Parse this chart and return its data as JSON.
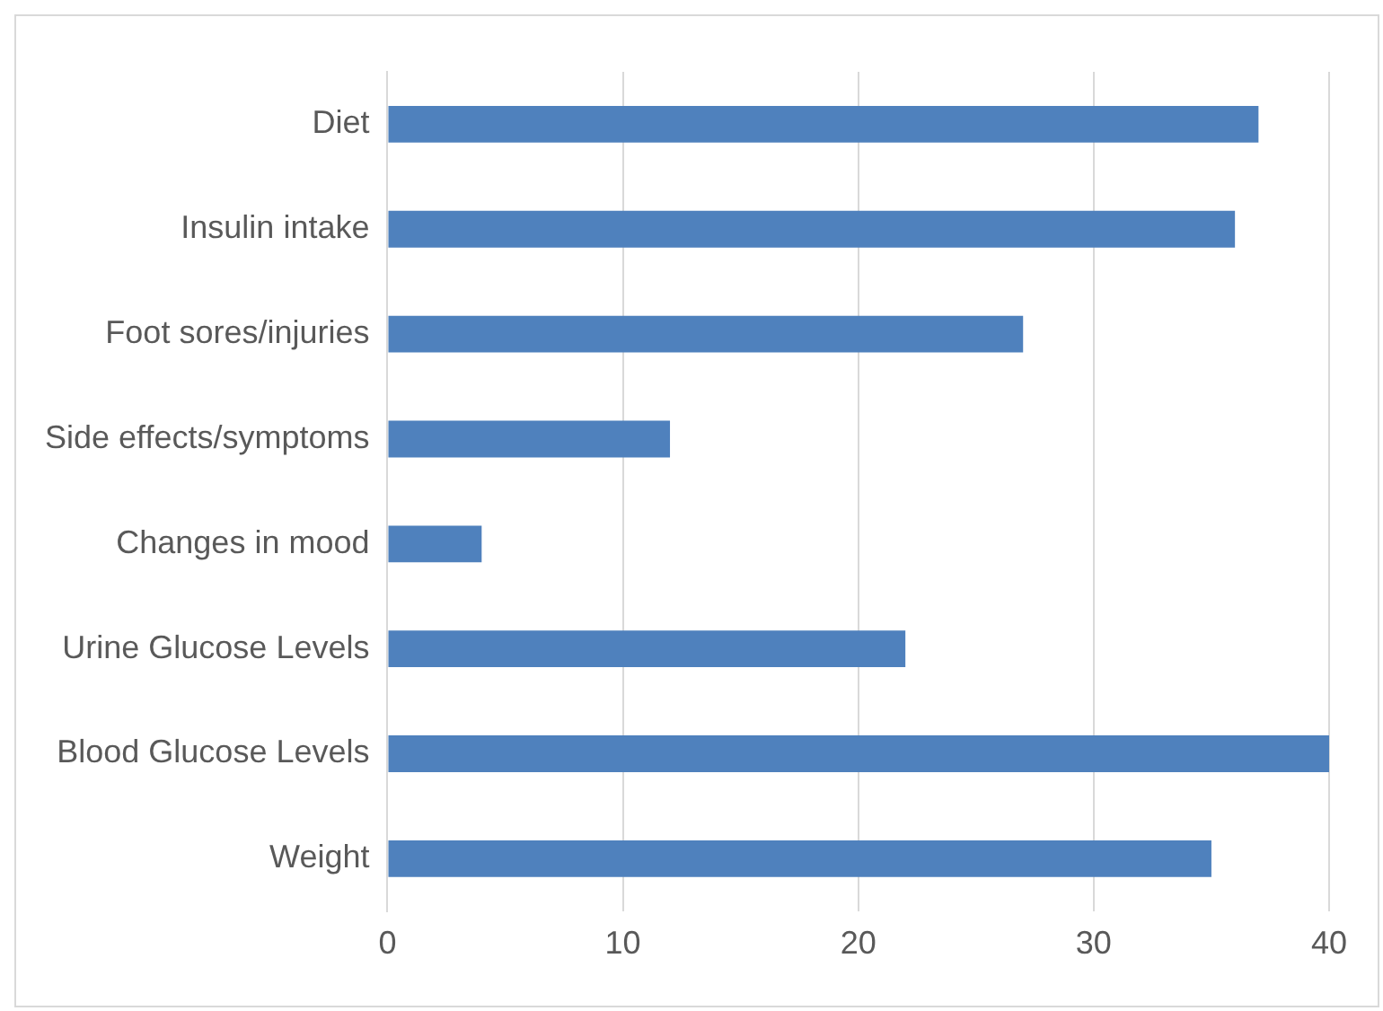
{
  "chart_data": {
    "type": "bar",
    "orientation": "horizontal",
    "categories": [
      "Diet",
      "Insulin intake",
      "Foot sores/injuries",
      "Side effects/symptoms",
      "Changes in mood",
      "Urine Glucose Levels",
      "Blood Glucose Levels",
      "Weight"
    ],
    "values": [
      37,
      36,
      27,
      12,
      4,
      22,
      40,
      35
    ],
    "color": "#4f81bd",
    "xlim": [
      0,
      40
    ],
    "xticks": [
      0,
      10,
      20,
      30,
      40
    ],
    "grid": "x",
    "legend": false
  }
}
